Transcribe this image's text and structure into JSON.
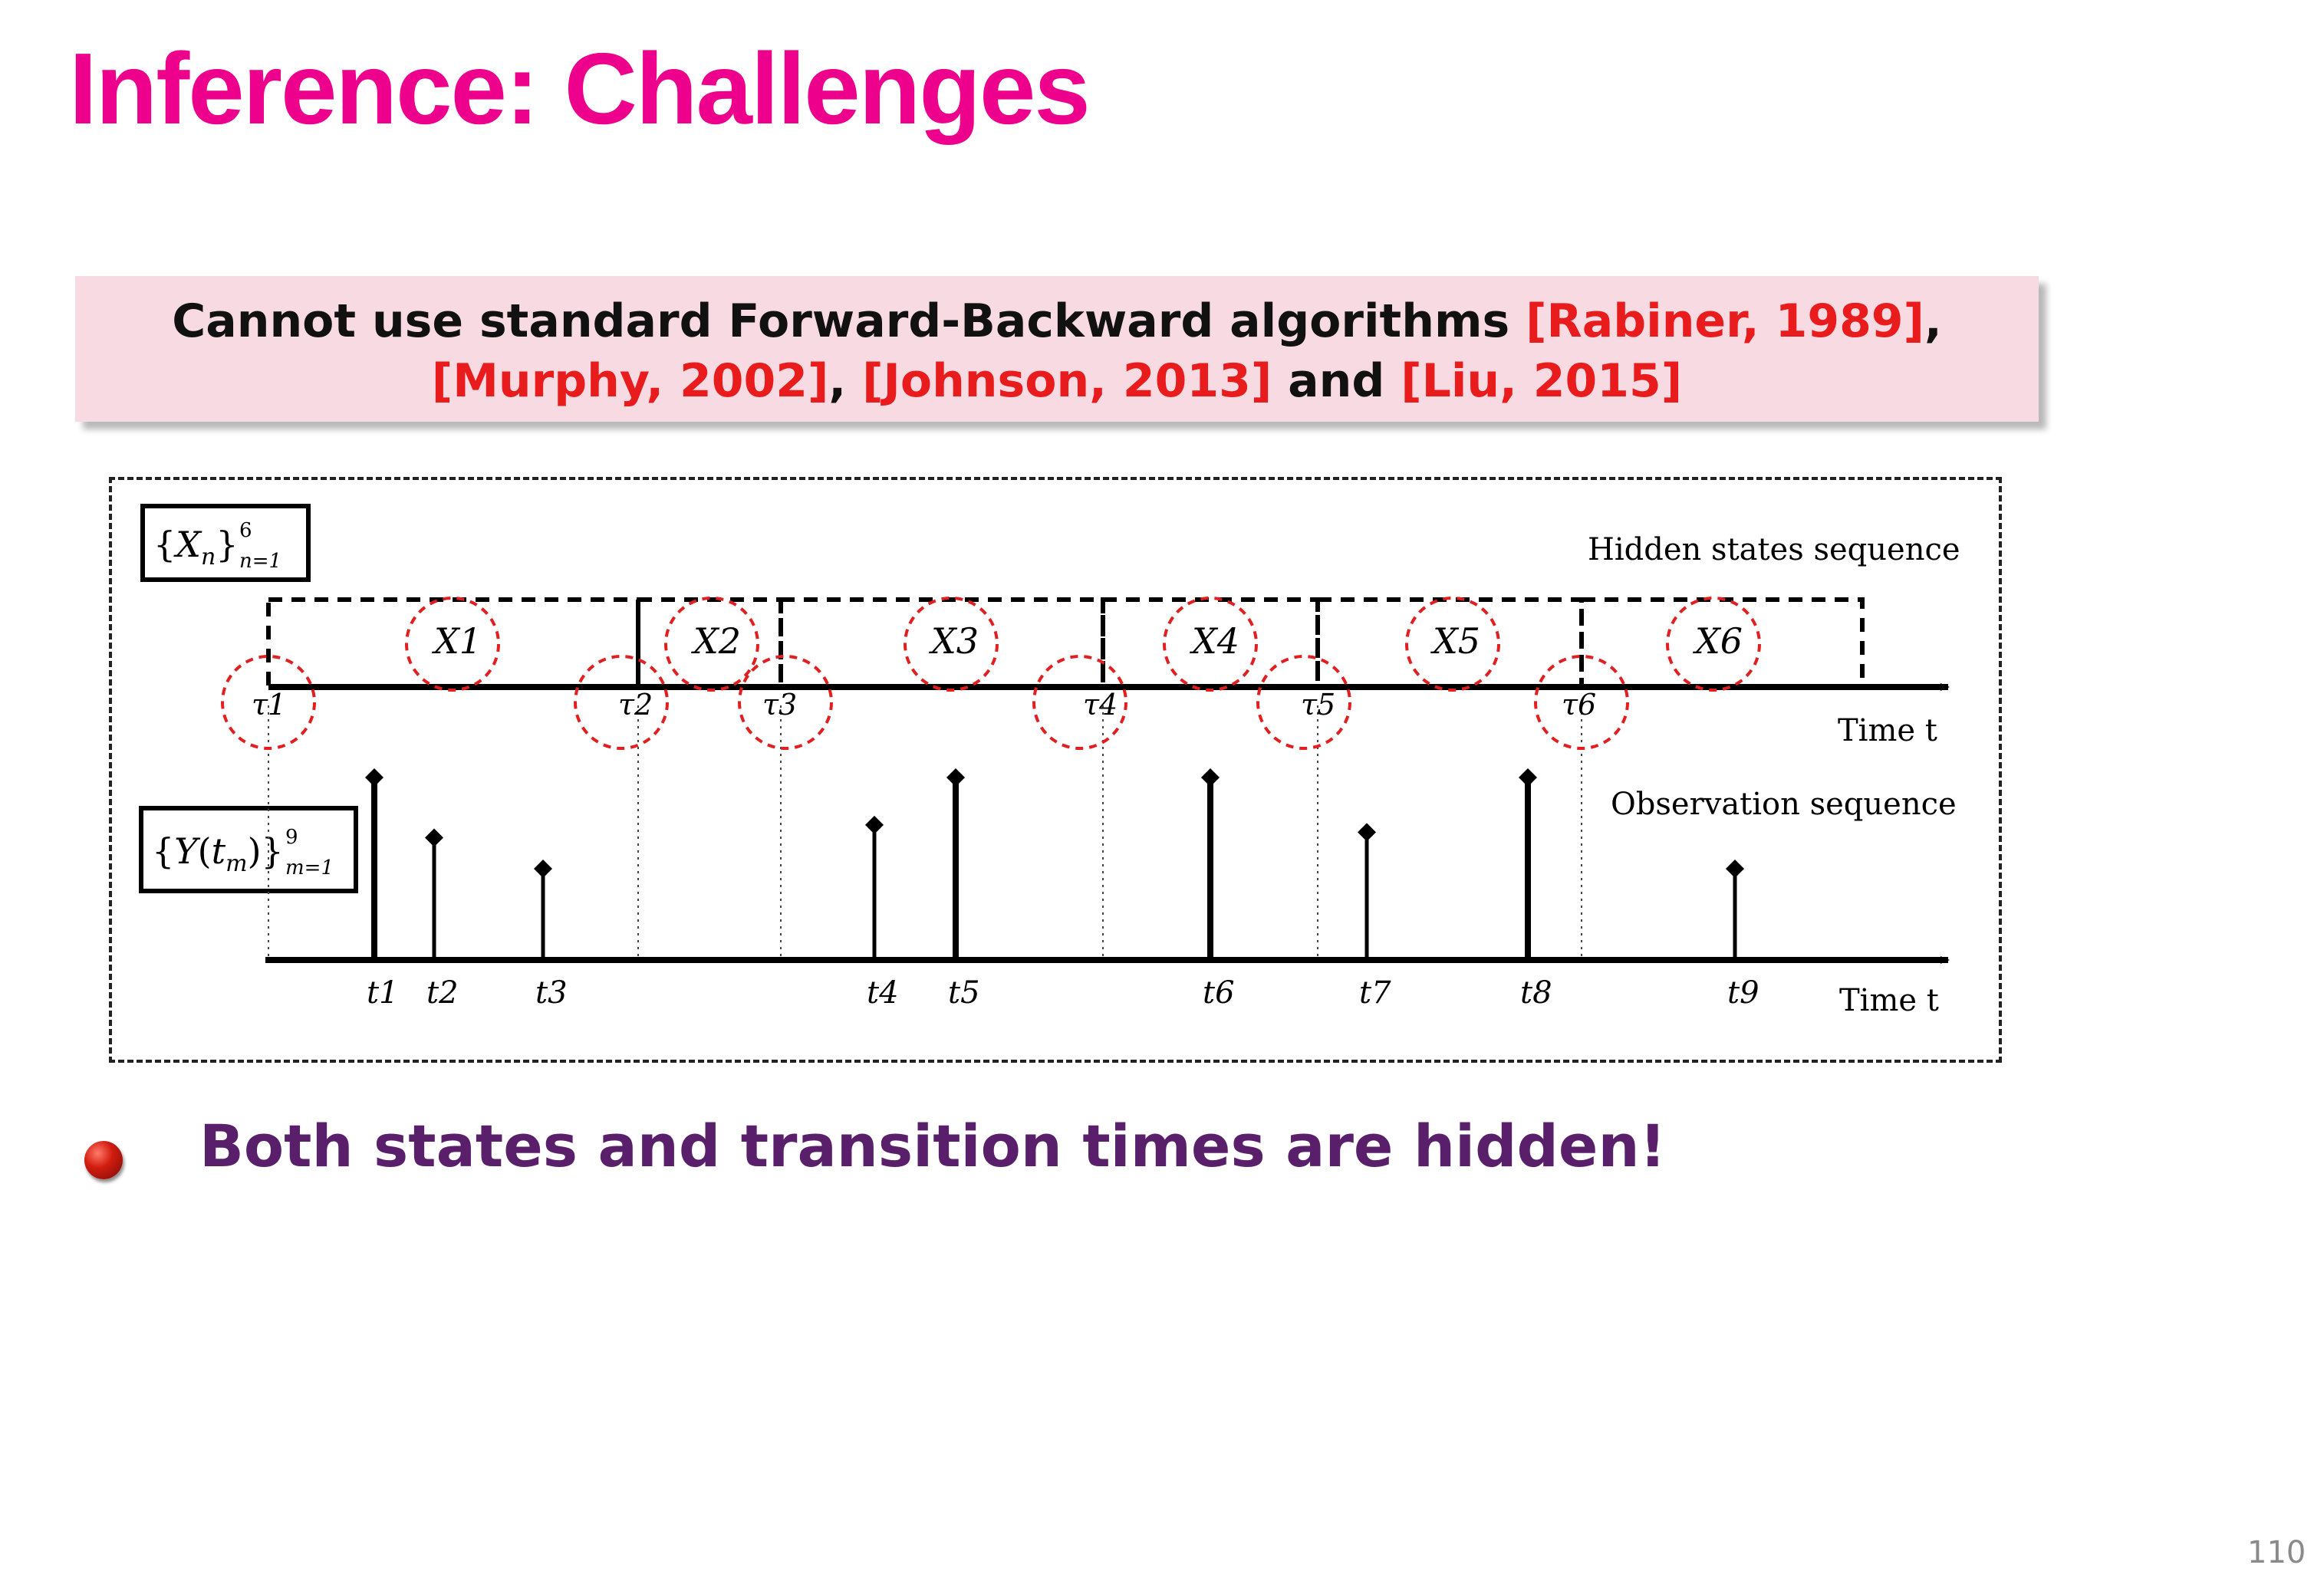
{
  "slide": {
    "title": "Inference: Challenges",
    "page_number": "110"
  },
  "callout": {
    "text_before": "Cannot use standard Forward-Backward algorithms ",
    "ref1": "[Rabiner, 1989]",
    "sep1": ", ",
    "ref2": "[Murphy, 2002]",
    "sep2": ", ",
    "ref3": "[Johnson, 2013]",
    "sep3": " and ",
    "ref4": "[Liu, 2015]"
  },
  "diagram": {
    "hidden_label": "Hidden states sequence",
    "observation_label": "Observation sequence",
    "time_label": "Time t",
    "hidden_box_label": "{Xn}6n=1",
    "obs_box_label": "{Y(tm)}9m=1",
    "states": [
      "X1",
      "X2",
      "X3",
      "X4",
      "X5",
      "X6"
    ],
    "transitions": [
      "τ1",
      "τ2",
      "τ3",
      "τ4",
      "τ5",
      "τ6"
    ],
    "observations": [
      "t1",
      "t2",
      "t3",
      "t4",
      "t5",
      "t6",
      "t7",
      "t8",
      "t9"
    ],
    "observation_levels": [
      1.0,
      0.67,
      0.5,
      0.74,
      1.0,
      1.0,
      0.7,
      1.0,
      0.5
    ]
  },
  "bullet": {
    "text": "Both states and transition times are hidden!"
  },
  "colors": {
    "title": "#ec008c",
    "reference": "#e81c1c",
    "bullet_text": "#5a1f6b",
    "callout_bg": "#f8dbe2",
    "circle": "#e02020"
  }
}
